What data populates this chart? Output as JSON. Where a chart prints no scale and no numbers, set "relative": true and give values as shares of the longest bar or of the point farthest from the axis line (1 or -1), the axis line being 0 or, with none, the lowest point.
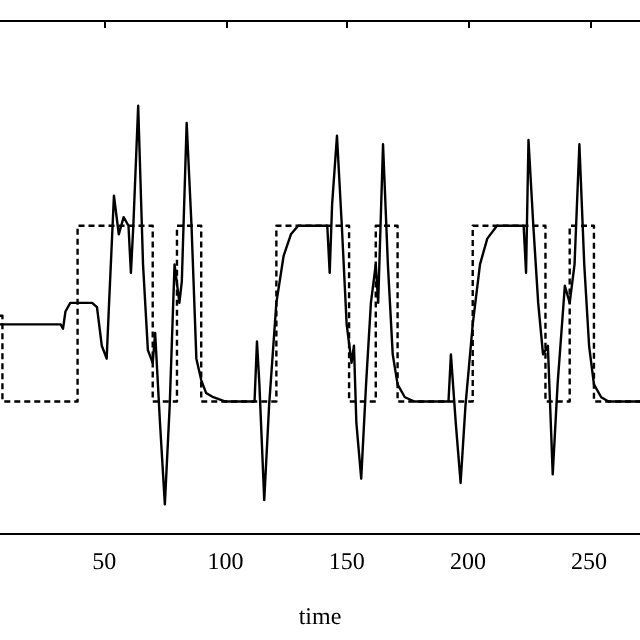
{
  "chart_data": {
    "type": "line",
    "xlabel": "time",
    "relative": true,
    "xlim": [
      7,
      271
    ],
    "xticks": [
      50,
      100,
      150,
      200,
      250
    ],
    "grid": false,
    "legend": false,
    "marker": "none",
    "series": [
      {
        "color": "#000000",
        "line_style": "dashed",
        "x": [
          7,
          8,
          8,
          39,
          39,
          70,
          70,
          80,
          80,
          90,
          90,
          121,
          121,
          151,
          151,
          162,
          162,
          171,
          171,
          202,
          202,
          232,
          232,
          242,
          242,
          252,
          252,
          271
        ],
        "values": [
          0.51,
          0.51,
          0.31,
          0.31,
          0.72,
          0.72,
          0.31,
          0.31,
          0.72,
          0.72,
          0.31,
          0.31,
          0.72,
          0.72,
          0.31,
          0.31,
          0.72,
          0.72,
          0.31,
          0.31,
          0.72,
          0.72,
          0.31,
          0.31,
          0.72,
          0.72,
          0.31,
          0.31
        ]
      },
      {
        "color": "#000000",
        "line_style": "solid",
        "x": [
          7,
          30,
          32,
          33,
          34,
          36,
          45,
          47,
          49,
          51,
          52,
          54,
          56,
          58,
          60,
          61,
          62,
          64,
          66,
          68,
          70,
          71,
          73,
          75,
          77,
          79,
          81,
          82,
          84,
          86,
          88,
          90,
          92,
          95,
          100,
          112,
          113,
          114,
          116,
          118,
          121,
          124,
          127,
          130,
          140,
          142,
          143,
          144,
          146,
          148,
          150,
          152,
          153,
          154,
          156,
          158,
          160,
          162,
          163,
          165,
          167,
          169,
          171,
          174,
          178,
          192,
          193,
          195,
          197,
          199,
          202,
          205,
          208,
          212,
          223,
          224,
          225,
          227,
          229,
          231,
          233,
          235,
          237,
          240,
          242,
          244,
          246,
          248,
          250,
          252,
          255,
          258,
          271
        ],
        "values": [
          0.49,
          0.49,
          0.49,
          0.48,
          0.52,
          0.54,
          0.54,
          0.53,
          0.44,
          0.41,
          0.54,
          0.79,
          0.7,
          0.74,
          0.72,
          0.61,
          0.72,
          1,
          0.63,
          0.43,
          0.4,
          0.47,
          0.26,
          0.07,
          0.3,
          0.63,
          0.54,
          0.59,
          0.96,
          0.72,
          0.41,
          0.36,
          0.33,
          0.32,
          0.31,
          0.31,
          0.45,
          0.35,
          0.08,
          0.3,
          0.54,
          0.65,
          0.7,
          0.72,
          0.72,
          0.72,
          0.61,
          0.77,
          0.93,
          0.72,
          0.49,
          0.4,
          0.44,
          0.26,
          0.13,
          0.35,
          0.54,
          0.63,
          0.54,
          0.91,
          0.63,
          0.42,
          0.35,
          0.32,
          0.31,
          0.31,
          0.42,
          0.26,
          0.12,
          0.3,
          0.49,
          0.63,
          0.69,
          0.72,
          0.72,
          0.61,
          0.92,
          0.72,
          0.54,
          0.42,
          0.44,
          0.14,
          0.35,
          0.58,
          0.54,
          0.63,
          0.91,
          0.63,
          0.44,
          0.35,
          0.32,
          0.31,
          0.31
        ]
      }
    ]
  }
}
